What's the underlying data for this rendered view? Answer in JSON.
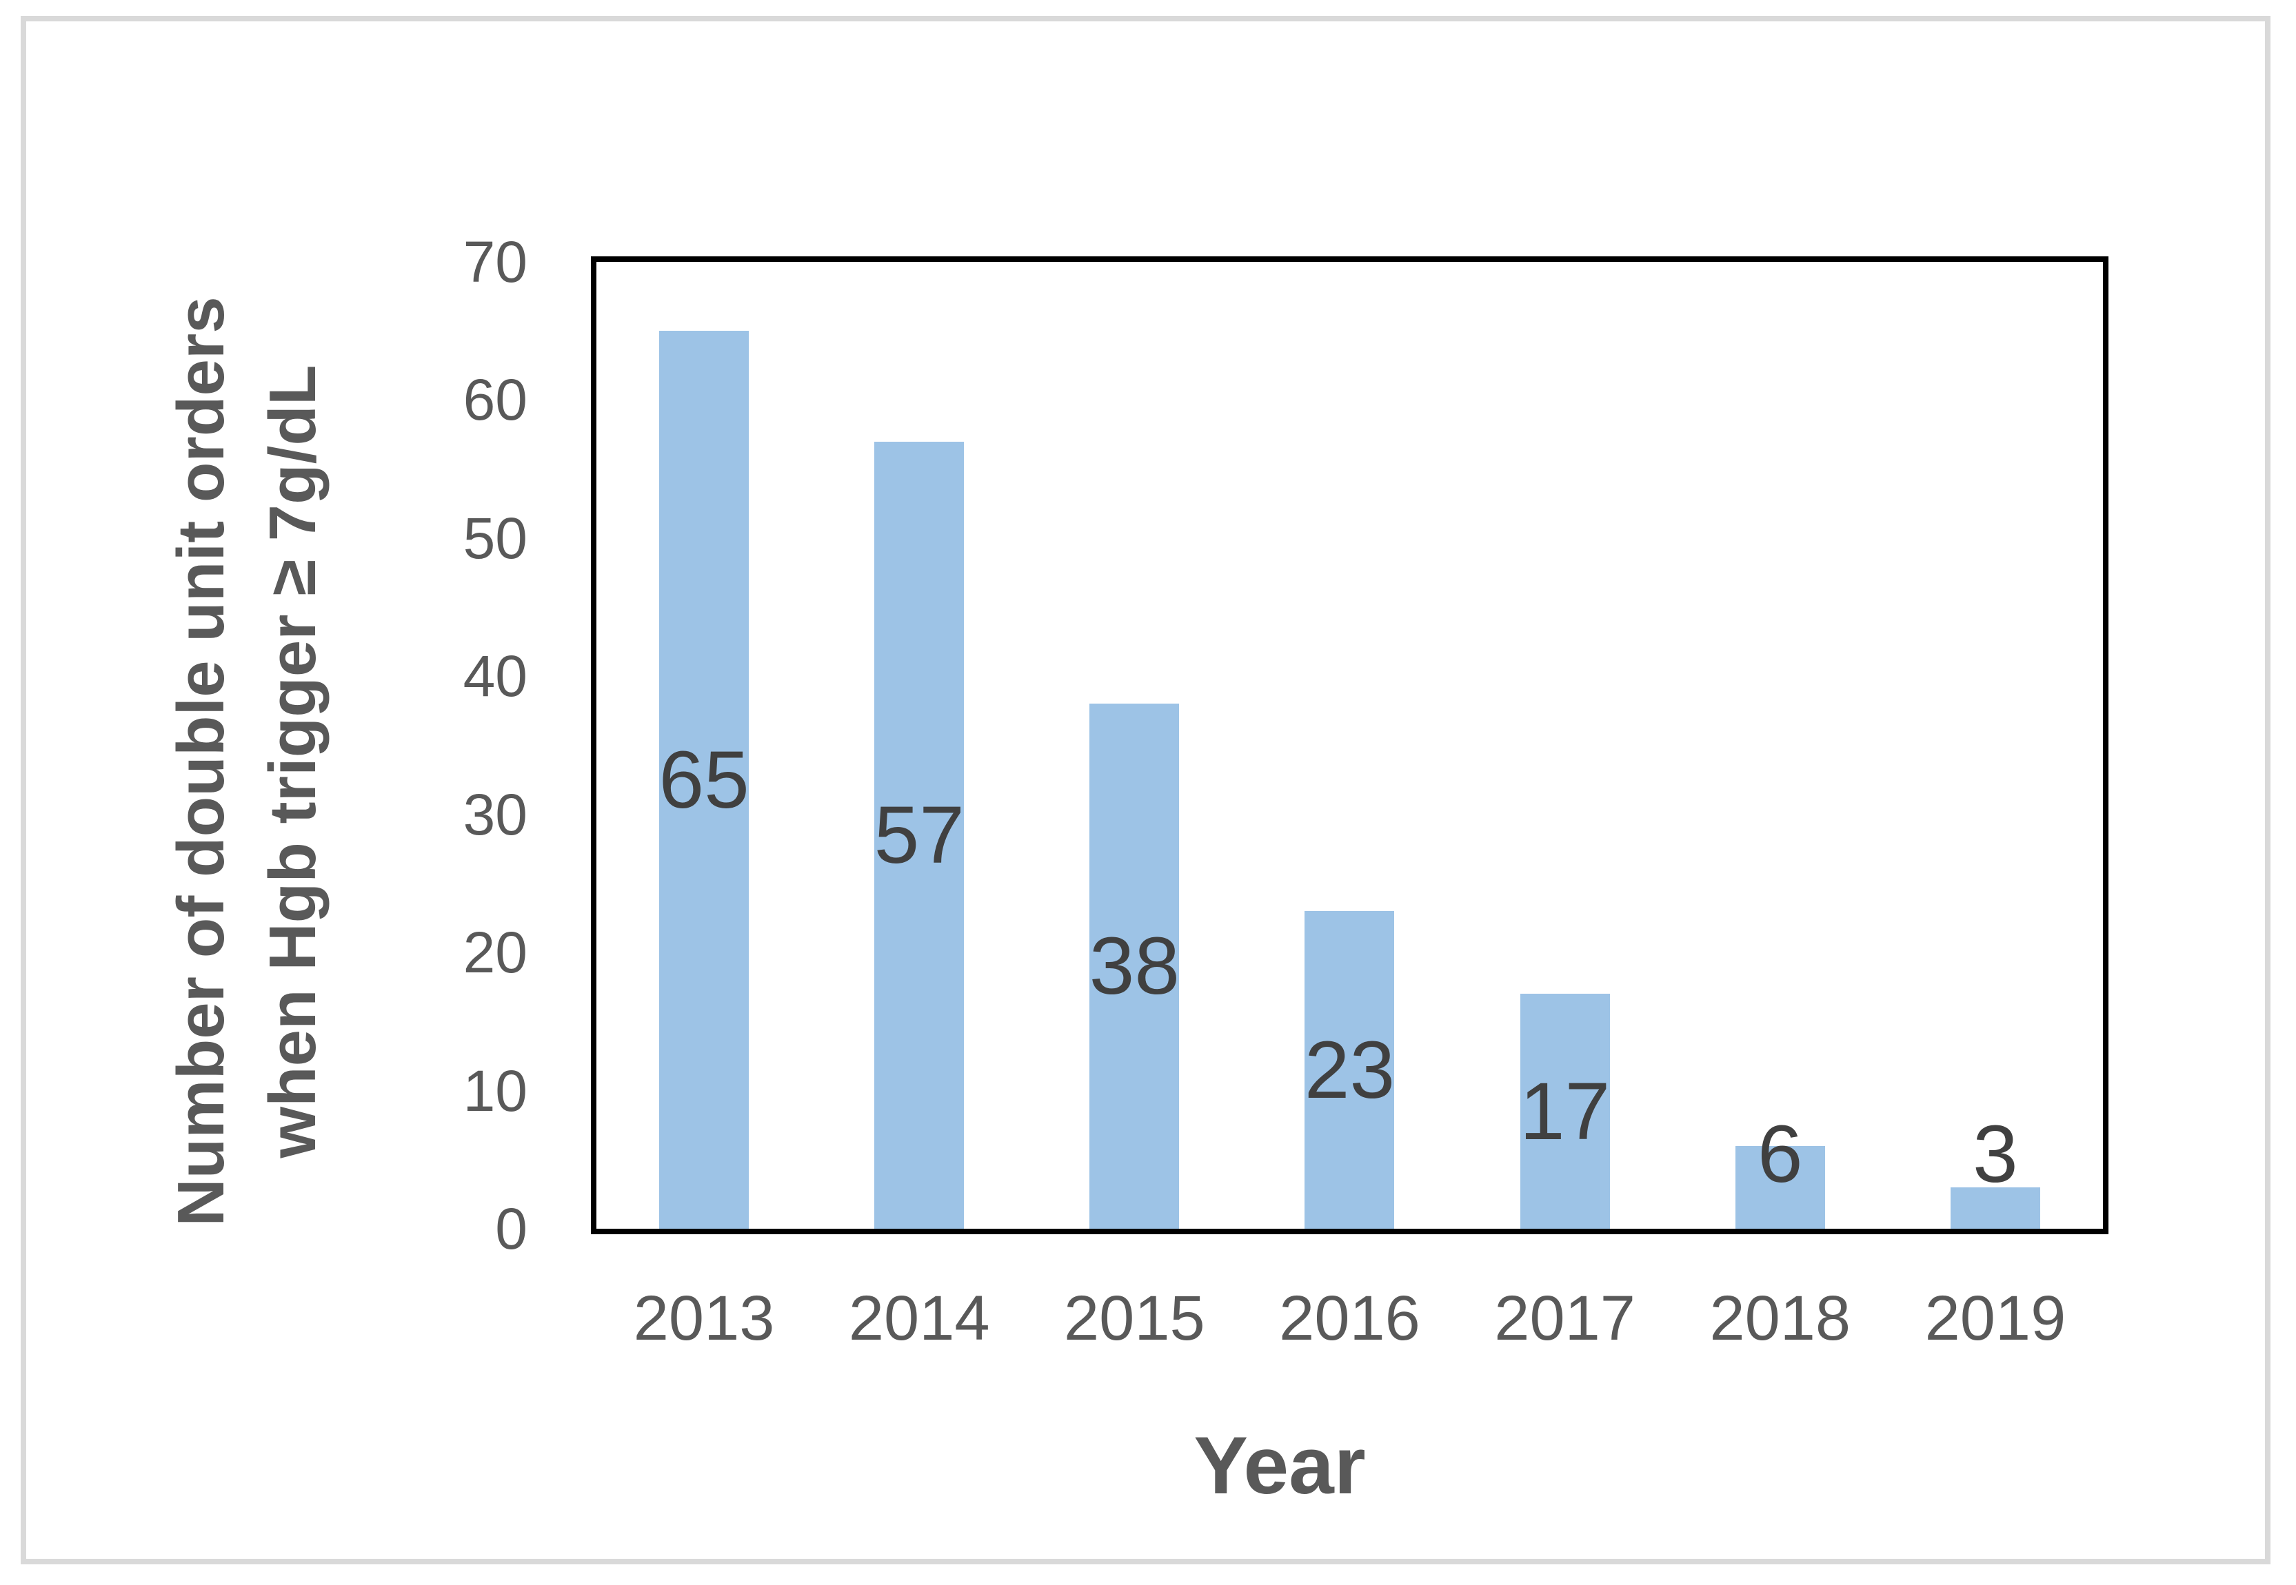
{
  "figure": {
    "background_color": "#FFFFFF",
    "frame_color": "#D9D9D9"
  },
  "chart_data": {
    "type": "bar",
    "title": "",
    "categories": [
      "2013",
      "2014",
      "2015",
      "2016",
      "2017",
      "2018",
      "2019"
    ],
    "values": [
      65,
      57,
      38,
      23,
      17,
      6,
      3
    ],
    "data_labels": [
      "65",
      "57",
      "38",
      "23",
      "17",
      "6",
      "3"
    ],
    "xlabel": "Year",
    "ylabel_line1": "Number of double unit orders",
    "ylabel_line2": "when Hgb trigger ≥ 7g/dL",
    "ylim": [
      0,
      70
    ],
    "yticks": [
      0,
      10,
      20,
      30,
      40,
      50,
      60,
      70
    ],
    "grid": "off",
    "legend": "none",
    "bar_color": "#9DC3E6",
    "data_label_color": "#404040",
    "axis_text_color": "#595959",
    "axis_line_color": "#000000"
  }
}
